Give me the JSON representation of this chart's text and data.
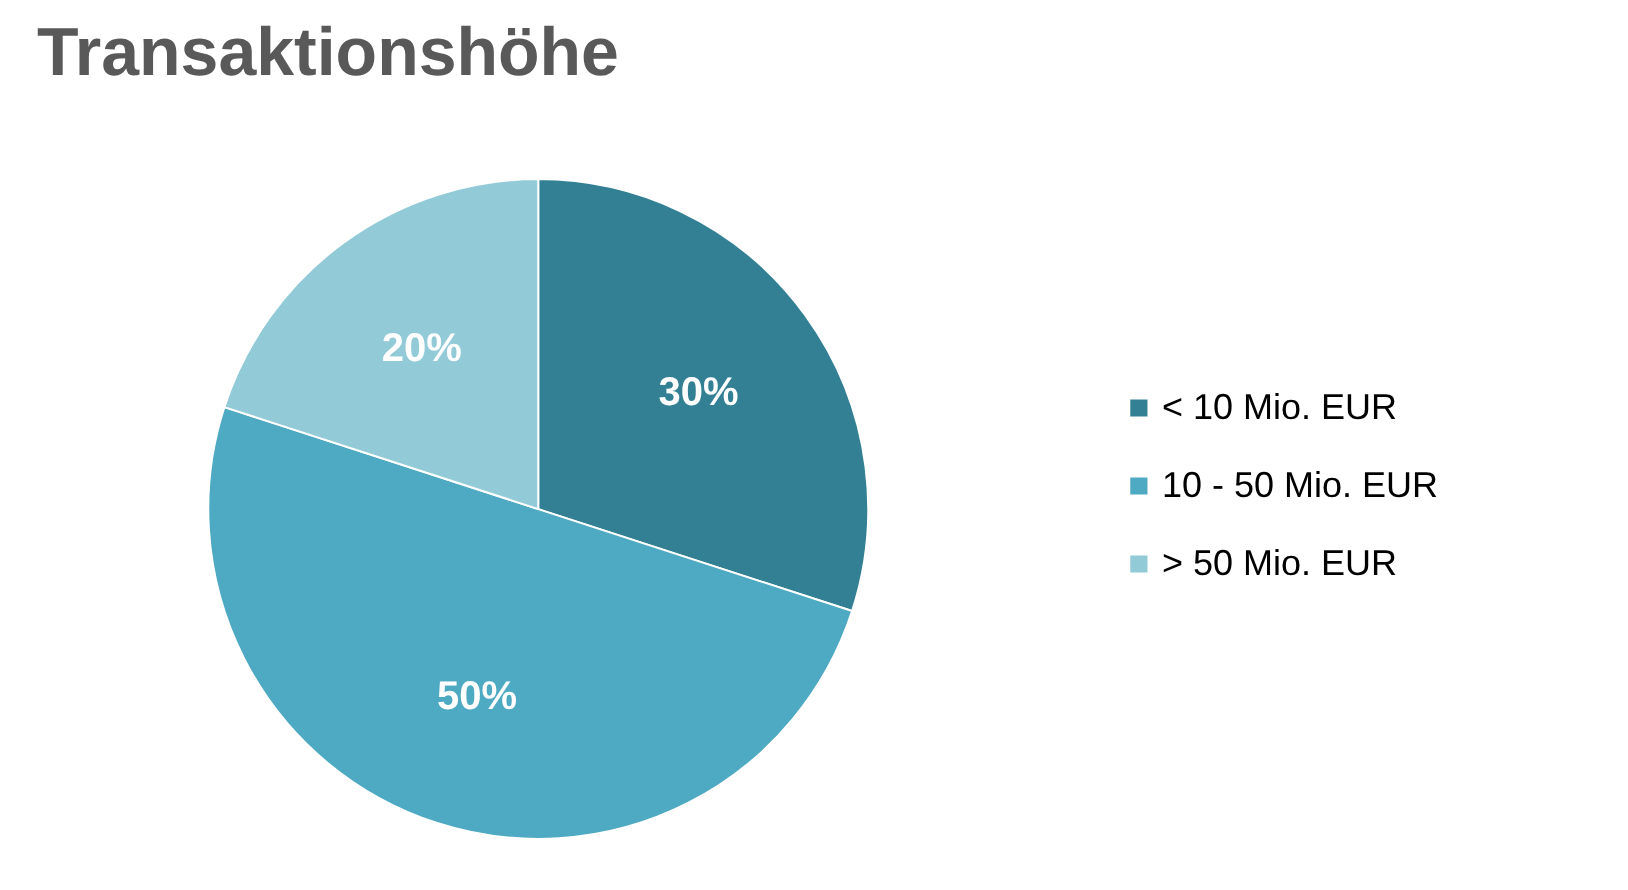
{
  "chart_data": {
    "type": "pie",
    "title": "Transaktionshöhe",
    "categories": [
      "< 10 Mio. EUR",
      "10 - 50 Mio. EUR",
      "> 50 Mio. EUR"
    ],
    "values": [
      30,
      50,
      20
    ],
    "colors": [
      "#338095",
      "#4ea9c2",
      "#93cad8"
    ],
    "value_labels": [
      "30%",
      "50%",
      "20%"
    ],
    "legend": "right"
  }
}
